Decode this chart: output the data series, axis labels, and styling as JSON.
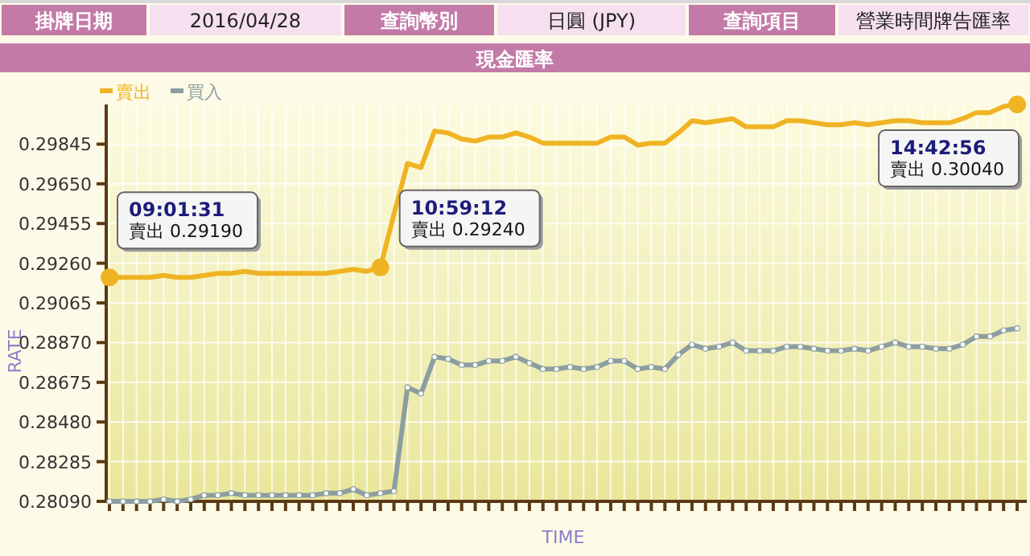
{
  "chart_data": {
    "type": "line",
    "title": "現金匯率",
    "xlabel": "TIME",
    "ylabel": "RATE",
    "categories": [
      null,
      null,
      null,
      null,
      null,
      null,
      null,
      null,
      null,
      null,
      null,
      null,
      null,
      null,
      null,
      null,
      null,
      null,
      null,
      null,
      null,
      null,
      null,
      null,
      null,
      null,
      null,
      null,
      null,
      null,
      null,
      null,
      null,
      null,
      null,
      null,
      null,
      null,
      null,
      null,
      null,
      null,
      null,
      null,
      null,
      null,
      null,
      null,
      null,
      null,
      null,
      null,
      null,
      null,
      null,
      null,
      null,
      null,
      null,
      null,
      null,
      null,
      null,
      null,
      null,
      null,
      null,
      null
    ],
    "series": [
      {
        "name": "賣出",
        "color": "#f0b323",
        "marker": "none",
        "values": [
          0.2919,
          0.2919,
          0.2919,
          0.2919,
          0.292,
          0.2919,
          0.2919,
          0.292,
          0.2921,
          0.2921,
          0.2922,
          0.2921,
          0.2921,
          0.2921,
          0.2921,
          0.2921,
          0.2921,
          0.2922,
          0.2923,
          0.2922,
          0.2924,
          0.295,
          0.2975,
          0.2973,
          0.2991,
          0.299,
          0.2987,
          0.2986,
          0.2988,
          0.2988,
          0.299,
          0.2988,
          0.2985,
          0.2985,
          0.2985,
          0.2985,
          0.2985,
          0.2988,
          0.2988,
          0.2984,
          0.2985,
          0.2985,
          0.299,
          0.2996,
          0.2995,
          0.2996,
          0.2997,
          0.2993,
          0.2993,
          0.2993,
          0.2996,
          0.2996,
          0.2995,
          0.2994,
          0.2994,
          0.2995,
          0.2994,
          0.2995,
          0.2996,
          0.2996,
          0.2995,
          0.2995,
          0.2995,
          0.2997,
          0.3,
          0.3,
          0.3003,
          0.3004
        ]
      },
      {
        "name": "買入",
        "color": "#8c9ea0",
        "marker": "circle",
        "values": [
          0.2809,
          0.2809,
          0.2809,
          0.2809,
          0.281,
          0.2809,
          0.281,
          0.2812,
          0.2812,
          0.2813,
          0.2812,
          0.2812,
          0.2812,
          0.2812,
          0.2812,
          0.2812,
          0.2813,
          0.2813,
          0.2815,
          0.2812,
          0.2813,
          0.2814,
          0.2865,
          0.2862,
          0.288,
          0.2879,
          0.2876,
          0.2876,
          0.2878,
          0.2878,
          0.288,
          0.2877,
          0.2874,
          0.2874,
          0.2875,
          0.2874,
          0.2875,
          0.2878,
          0.2878,
          0.2874,
          0.2875,
          0.2874,
          0.2881,
          0.2886,
          0.2884,
          0.2885,
          0.2887,
          0.2883,
          0.2883,
          0.2883,
          0.2885,
          0.2885,
          0.2884,
          0.2883,
          0.2883,
          0.2884,
          0.2883,
          0.2885,
          0.2887,
          0.2885,
          0.2885,
          0.2884,
          0.2884,
          0.2886,
          0.289,
          0.289,
          0.2893,
          0.2894
        ]
      }
    ],
    "ylim": [
      0.2809,
      0.3004
    ],
    "yticks": [
      {
        "value": 0.2809,
        "label": "0.28090"
      },
      {
        "value": 0.28285,
        "label": "0.28285"
      },
      {
        "value": 0.2848,
        "label": "0.28480"
      },
      {
        "value": 0.28675,
        "label": "0.28675"
      },
      {
        "value": 0.2887,
        "label": "0.28870"
      },
      {
        "value": 0.29065,
        "label": "0.29065"
      },
      {
        "value": 0.2926,
        "label": "0.29260"
      },
      {
        "value": 0.29455,
        "label": "0.29455"
      },
      {
        "value": 0.2965,
        "label": "0.29650"
      },
      {
        "value": 0.29845,
        "label": "0.29845"
      }
    ],
    "grid": true,
    "legend": "top left",
    "annotations": [
      "掛牌日期",
      "2016/04/28",
      "查詢幣別",
      "日圓 (JPY)",
      "查詢項目",
      "營業時間牌告匯率",
      "09:01:31\n賣出 0.29190",
      "10:59:12\n賣出 0.29240",
      "14:42:56\n賣出 0.30040"
    ]
  }
}
